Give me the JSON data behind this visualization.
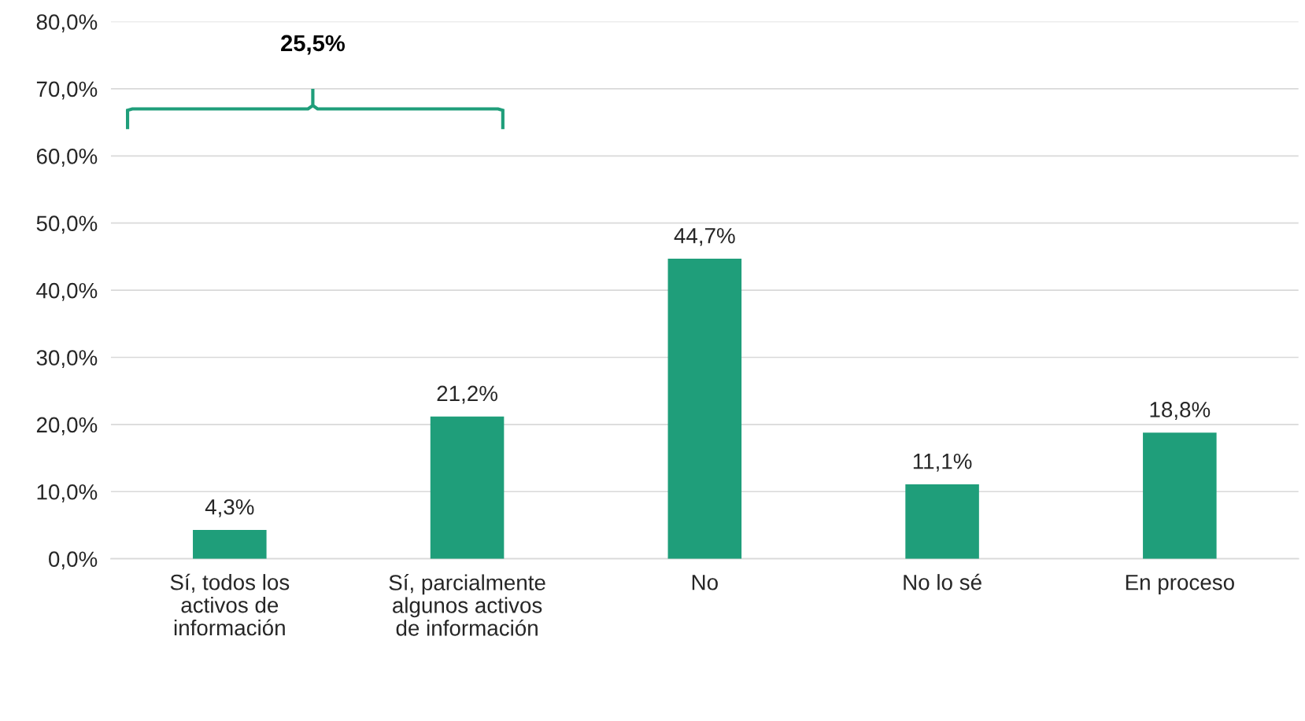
{
  "chart_data": {
    "type": "bar",
    "categories": [
      "Sí, todos los activos de información",
      "Sí, parcialmente algunos activos de información",
      "No",
      "No lo sé",
      "En proceso"
    ],
    "values": [
      4.3,
      21.2,
      44.7,
      11.1,
      18.8
    ],
    "value_labels": [
      "4,3%",
      "21,2%",
      "44,7%",
      "11,1%",
      "18,8%"
    ],
    "color": "#1f9e7a",
    "ylim": [
      0,
      80
    ],
    "yticks": [
      {
        "value": 0,
        "label": "0,0%"
      },
      {
        "value": 10,
        "label": "10,0%"
      },
      {
        "value": 20,
        "label": "20,0%"
      },
      {
        "value": 30,
        "label": "30,0%"
      },
      {
        "value": 40,
        "label": "40,0%"
      },
      {
        "value": 50,
        "label": "50,0%"
      },
      {
        "value": 60,
        "label": "60,0%"
      },
      {
        "value": 70,
        "label": "70,0%"
      },
      {
        "value": 80,
        "label": "80,0%"
      }
    ],
    "grid": "y",
    "annotations": [
      "25,5%"
    ]
  }
}
